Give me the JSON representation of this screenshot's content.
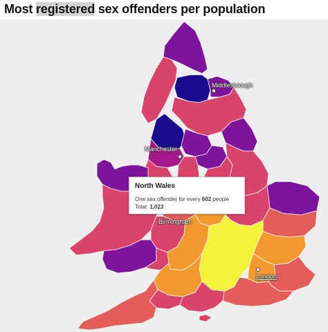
{
  "title": {
    "before": "Most ",
    "highlight": "registered",
    "after": " sex offenders per population"
  },
  "colors": {
    "background": "#eeeeee",
    "dark_navy": "#1a0a8c",
    "purple": "#7d149b",
    "magenta_purple": "#a51a8a",
    "rose": "#d9446b",
    "coral": "#e35d5a",
    "orange": "#f39a2e",
    "yellow": "#f4f23a"
  },
  "map": {
    "cities": {
      "middlesbrough": "Middlesbrough",
      "manchester": "Manchester",
      "birmingham": "Birmingham",
      "london": "London"
    }
  },
  "tooltip": {
    "region": "North Wales",
    "line1_prefix": "One sex offender for every ",
    "line1_value": "602",
    "line1_suffix": " people",
    "line2_prefix": "Total: ",
    "line2_value": "1,023"
  }
}
